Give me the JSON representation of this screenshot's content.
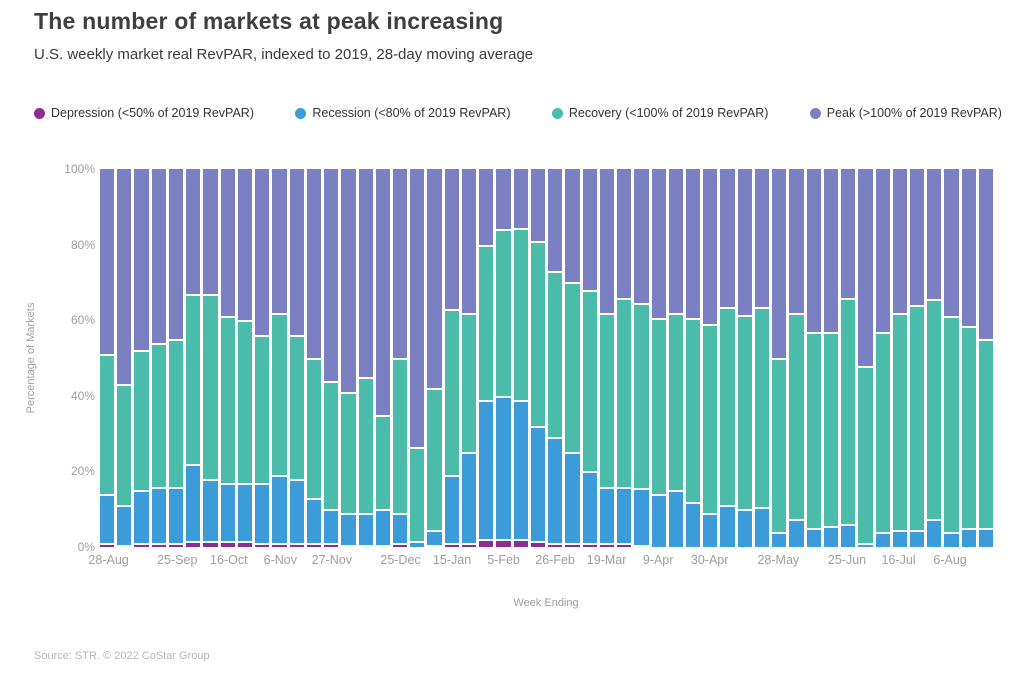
{
  "header": {
    "title": "The number of markets at peak increasing",
    "subtitle": "U.S. weekly market real RevPAR, indexed to 2019, 28-day moving average"
  },
  "footer": {
    "source": "Source: STR. © 2022 CoStar Group"
  },
  "chart_data": {
    "type": "bar",
    "stacked": true,
    "title": "The number of markets at peak increasing",
    "subtitle": "U.S. weekly market real RevPAR, indexed to 2019, 28-day moving average",
    "xlabel": "Week Ending",
    "ylabel": "Percentage of Markets",
    "ylim": [
      0,
      100
    ],
    "grid": false,
    "legend_position": "top",
    "y_ticks": [
      {
        "value": 0,
        "label": "0%"
      },
      {
        "value": 20,
        "label": "20%"
      },
      {
        "value": 40,
        "label": "40%"
      },
      {
        "value": 60,
        "label": "60%"
      },
      {
        "value": 80,
        "label": "80%"
      },
      {
        "value": 100,
        "label": "100%"
      }
    ],
    "legend": [
      {
        "key": "depression",
        "label": "Depression (<50% of 2019 RevPAR)",
        "color": "#8c2d90"
      },
      {
        "key": "recession",
        "label": "Recession (<80% of 2019 RevPAR)",
        "color": "#3b9cd9"
      },
      {
        "key": "recovery",
        "label": "Recovery (<100% of 2019 RevPAR)",
        "color": "#4cbcaa"
      },
      {
        "key": "peak",
        "label": "Peak (>100% of 2019 RevPAR)",
        "color": "#7b80c2"
      }
    ],
    "colors": {
      "depression": "#8c2d90",
      "recession": "#3b9cd9",
      "recovery": "#4cbcaa",
      "peak": "#7b80c2"
    },
    "x_ticks": [
      {
        "pos": 0,
        "label": "28-Aug"
      },
      {
        "pos": 4,
        "label": "25-Sep"
      },
      {
        "pos": 7,
        "label": "16-Oct"
      },
      {
        "pos": 10,
        "label": "6-Nov"
      },
      {
        "pos": 13,
        "label": "27-Nov"
      },
      {
        "pos": 17,
        "label": "25-Dec"
      },
      {
        "pos": 20,
        "label": "15-Jan"
      },
      {
        "pos": 23,
        "label": "5-Feb"
      },
      {
        "pos": 26,
        "label": "26-Feb"
      },
      {
        "pos": 29,
        "label": "19-Mar"
      },
      {
        "pos": 32,
        "label": "9-Apr"
      },
      {
        "pos": 35,
        "label": "30-Apr"
      },
      {
        "pos": 39,
        "label": "28-May"
      },
      {
        "pos": 43,
        "label": "25-Jun"
      },
      {
        "pos": 46,
        "label": "16-Jul"
      },
      {
        "pos": 49,
        "label": "6-Aug"
      }
    ],
    "series_order_bottom_to_top": [
      "depression",
      "recession",
      "recovery",
      "peak"
    ],
    "bars_pct_depression_recession_recovery_peak": [
      [
        1,
        13,
        37,
        49
      ],
      [
        0.5,
        10.5,
        32,
        57
      ],
      [
        1,
        14,
        37,
        48
      ],
      [
        1,
        15,
        38,
        46
      ],
      [
        1,
        15,
        39,
        45
      ],
      [
        1.5,
        20.5,
        45,
        33
      ],
      [
        1.5,
        16.5,
        49,
        33
      ],
      [
        1.5,
        15.5,
        44,
        39
      ],
      [
        1.5,
        15.5,
        43,
        40
      ],
      [
        1,
        16,
        39,
        44
      ],
      [
        1,
        18,
        43,
        38
      ],
      [
        1,
        17,
        38,
        44
      ],
      [
        1,
        12,
        37,
        50
      ],
      [
        1,
        9,
        34,
        56
      ],
      [
        0.5,
        8.5,
        32,
        59
      ],
      [
        0.5,
        8.5,
        36,
        55
      ],
      [
        0.5,
        9.5,
        25,
        65
      ],
      [
        1,
        8,
        41,
        50
      ],
      [
        0,
        1.5,
        25,
        73.5
      ],
      [
        0.5,
        4,
        37.5,
        58
      ],
      [
        1,
        18,
        44,
        37
      ],
      [
        1,
        24,
        37,
        38
      ],
      [
        2,
        37,
        41,
        20
      ],
      [
        2,
        38,
        44,
        16
      ],
      [
        2,
        37,
        45.5,
        15.5
      ],
      [
        1.5,
        30.5,
        49,
        19
      ],
      [
        1,
        28,
        44,
        27
      ],
      [
        1,
        24,
        45,
        30
      ],
      [
        1,
        19,
        48,
        32
      ],
      [
        1,
        15,
        46,
        38
      ],
      [
        1,
        15,
        50,
        34
      ],
      [
        0.5,
        15,
        49,
        35.5
      ],
      [
        0,
        14,
        46.5,
        39.5
      ],
      [
        0,
        15,
        47,
        38
      ],
      [
        0,
        12,
        48.5,
        39.5
      ],
      [
        0,
        9,
        50,
        41
      ],
      [
        0,
        11,
        52.5,
        36.5
      ],
      [
        0,
        10,
        51.5,
        38.5
      ],
      [
        0,
        10.5,
        53,
        36.5
      ],
      [
        0,
        4,
        46,
        50
      ],
      [
        0,
        7.5,
        54.5,
        38
      ],
      [
        0,
        5,
        52,
        43
      ],
      [
        0,
        5.5,
        51.5,
        43
      ],
      [
        0,
        6,
        60,
        34
      ],
      [
        0,
        1,
        47,
        52
      ],
      [
        0,
        4,
        53,
        43
      ],
      [
        0,
        4.5,
        57.5,
        38
      ],
      [
        0,
        4.5,
        59.5,
        36
      ],
      [
        0,
        7.5,
        58,
        34.5
      ],
      [
        0,
        4,
        57,
        39
      ],
      [
        0,
        5,
        53.5,
        41.5
      ],
      [
        0,
        5,
        50,
        45
      ]
    ]
  }
}
